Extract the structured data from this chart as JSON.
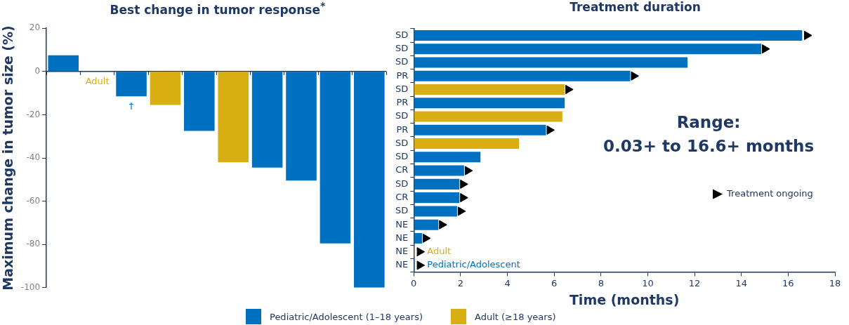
{
  "chart_data": [
    {
      "type": "bar",
      "title": "Best change in tumor response$^{*}$",
      "ylabel": "Maximum change in tumor size (%)",
      "categories": [
        null,
        null,
        null,
        null,
        null,
        null,
        null,
        null,
        null,
        null
      ],
      "stacked": true,
      "series": [
        {
          "name": "Pediatric/Adolescent (1–18 years)",
          "color": "#0070c0",
          "values": [
            7.5,
            null,
            -11.5,
            null,
            -27.5,
            null,
            -44.5,
            -50.5,
            -79.5,
            -100
          ],
          "value_labels": [
            null,
            null,
            "†",
            null,
            null,
            null,
            null,
            null,
            null,
            null
          ]
        },
        {
          "name": "Adult (≥18 years)",
          "color": "#d9ae12",
          "values": [
            null,
            0,
            null,
            -15.5,
            null,
            -42,
            null,
            null,
            null,
            null
          ],
          "value_labels": [
            null,
            "Adult",
            null,
            null,
            null,
            null,
            null,
            null,
            null,
            null
          ]
        }
      ],
      "ylim": [
        -100,
        20
      ],
      "yticks": [
        -100,
        -80,
        -60,
        -40,
        -20,
        0,
        20
      ],
      "grid": false,
      "legend": "bottom",
      "tick_labels": "y",
      "ref_lines": [
        {
          "axis": "y",
          "value": 0,
          "color": "#1f3864"
        }
      ]
    },
    {
      "type": "bar",
      "orientation": "horizontal",
      "title": "Treatment duration",
      "xlabel": "Time (months)",
      "categories": [
        "SD",
        "SD",
        "SD",
        "PR",
        "SD",
        "PR",
        "SD",
        "PR",
        "SD",
        "SD",
        "CR",
        "SD",
        "CR",
        "SD",
        "NE",
        "NE",
        "NE",
        "NE"
      ],
      "series": [
        {
          "colors": [
            "#0070c0",
            "#0070c0",
            "#0070c0",
            "#0070c0",
            "#d9ae12",
            "#0070c0",
            "#d9ae12",
            "#0070c0",
            "#d9ae12",
            "#0070c0",
            "#0070c0",
            "#0070c0",
            "#0070c0",
            "#0070c0",
            "#0070c0",
            "#0070c0",
            "#d9ae12",
            "#0070c0"
          ],
          "values": [
            16.6,
            14.85,
            11.7,
            9.25,
            6.45,
            6.45,
            6.35,
            5.65,
            4.5,
            2.85,
            2.15,
            1.95,
            1.95,
            1.85,
            1.05,
            0.35,
            0.03,
            0.03
          ],
          "value_labels": [
            null,
            null,
            null,
            null,
            null,
            null,
            null,
            null,
            null,
            null,
            null,
            null,
            null,
            null,
            null,
            null,
            "Adult",
            "Pediatric/Adolescent"
          ]
        },
        {
          "type": "scatter",
          "name": "Treatment ongoing",
          "color": "#000000",
          "values": [
            16.8,
            15.0,
            null,
            9.4,
            6.6,
            null,
            null,
            5.8,
            null,
            null,
            2.3,
            2.1,
            2.1,
            2.0,
            1.2,
            0.5,
            0.25,
            0.25
          ]
        }
      ],
      "marker": "triangle",
      "xlim": [
        0,
        18
      ],
      "xticks": [
        0,
        2,
        4,
        6,
        8,
        10,
        12,
        14,
        16,
        18
      ],
      "grid": false,
      "legend": "right",
      "annotations": [
        "Range:",
        "0.03+ to 16.6+ months"
      ]
    }
  ]
}
